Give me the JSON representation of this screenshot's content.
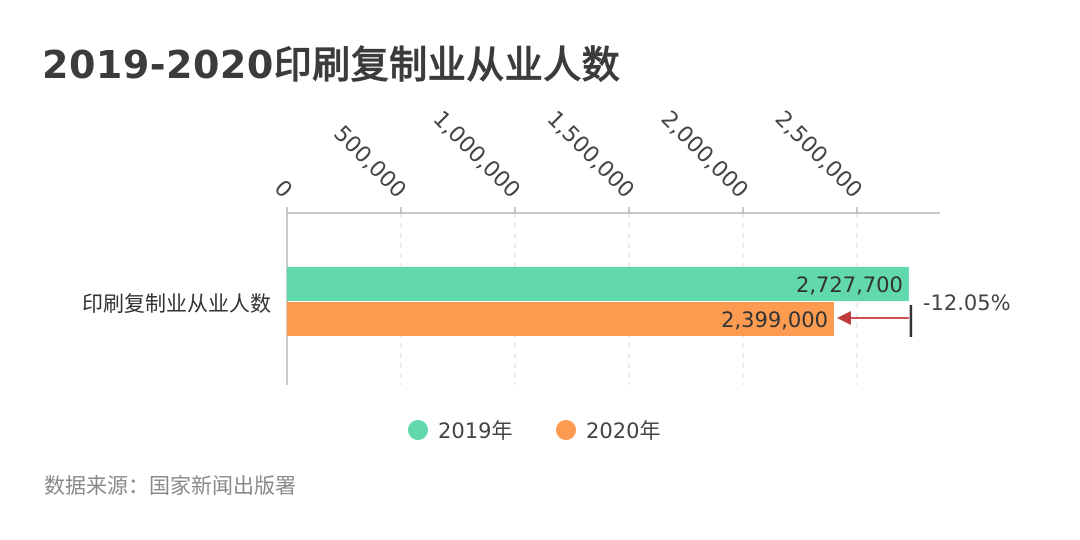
{
  "title": "2019-2020印刷复制业从业人数",
  "source": "数据来源：国家新闻出版署",
  "colors": {
    "series_2019": "#61d9ad",
    "series_2020": "#fd9b50",
    "arrow": "#c0393b",
    "axis": "#b8b8b8",
    "grid": "#d8d8d8"
  },
  "chart_data": {
    "type": "bar",
    "orientation": "horizontal",
    "categories": [
      "印刷复制业从业人数"
    ],
    "series": [
      {
        "name": "2019年",
        "values": [
          2727700
        ],
        "label": "2,727,700"
      },
      {
        "name": "2020年",
        "values": [
          2399000
        ],
        "label": "2,399,000"
      }
    ],
    "xticks": [
      0,
      500000,
      1000000,
      1500000,
      2000000,
      2500000
    ],
    "xtick_labels": [
      "0",
      "500,000",
      "1,000,000",
      "1,500,000",
      "2,000,000",
      "2,500,000"
    ],
    "xlim": [
      0,
      2850000
    ],
    "axis_position": "top",
    "grid": true,
    "legend": "bottom-center",
    "annotation": {
      "text": "-12.05%"
    }
  }
}
